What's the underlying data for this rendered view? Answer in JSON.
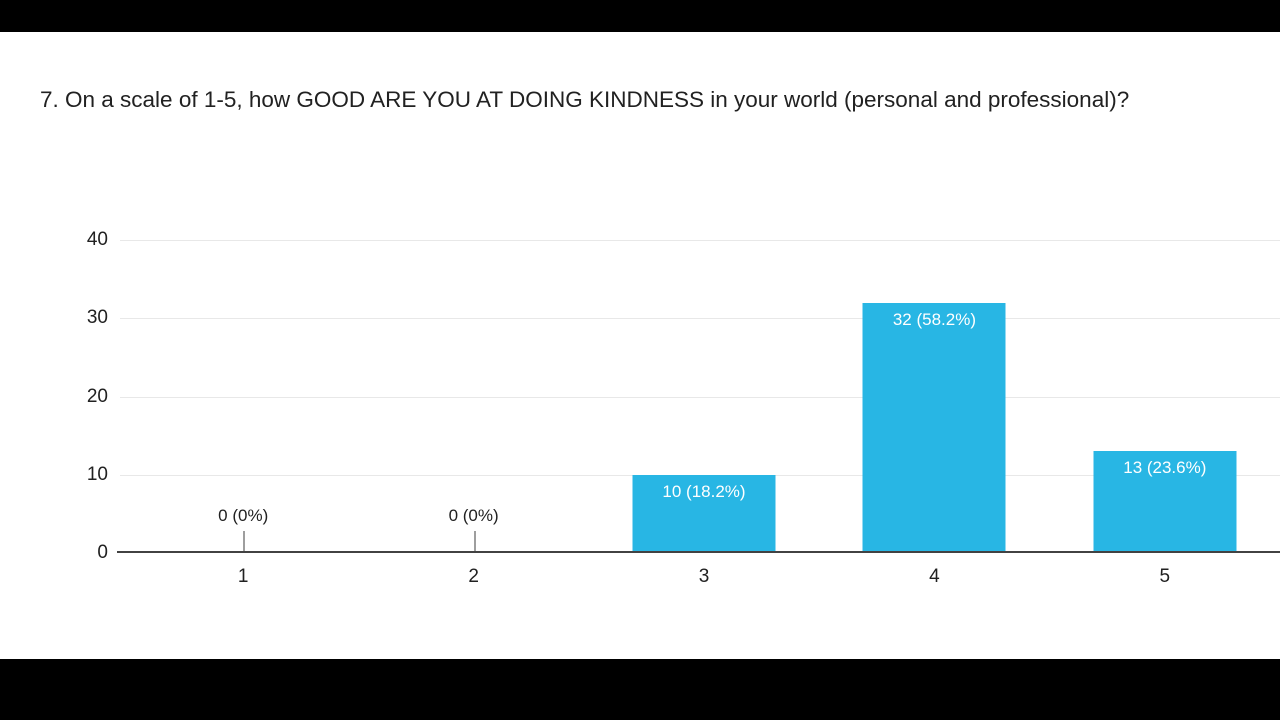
{
  "question": {
    "title": "7. On a scale of 1-5, how GOOD ARE YOU AT DOING KINDNESS in your world (personal and professional)?"
  },
  "chart_data": {
    "type": "bar",
    "title": "7. On a scale of 1-5, how GOOD ARE YOU AT DOING KINDNESS in your world (personal and professional)?",
    "categories": [
      "1",
      "2",
      "3",
      "4",
      "5"
    ],
    "values": [
      0,
      0,
      10,
      32,
      13
    ],
    "labels": [
      "0 (0%)",
      "0 (0%)",
      "10 (18.2%)",
      "32 (58.2%)",
      "13 (23.6%)"
    ],
    "xlabel": "",
    "ylabel": "",
    "ylim": [
      0,
      40
    ],
    "yticks": [
      0,
      10,
      20,
      30,
      40
    ],
    "grid": true,
    "legend_position": "none",
    "bar_color": "#28b6e4",
    "inside_label_color": "#ffffff",
    "axis_label_color": "#212121",
    "gridline_color": "#e8e8e8"
  }
}
